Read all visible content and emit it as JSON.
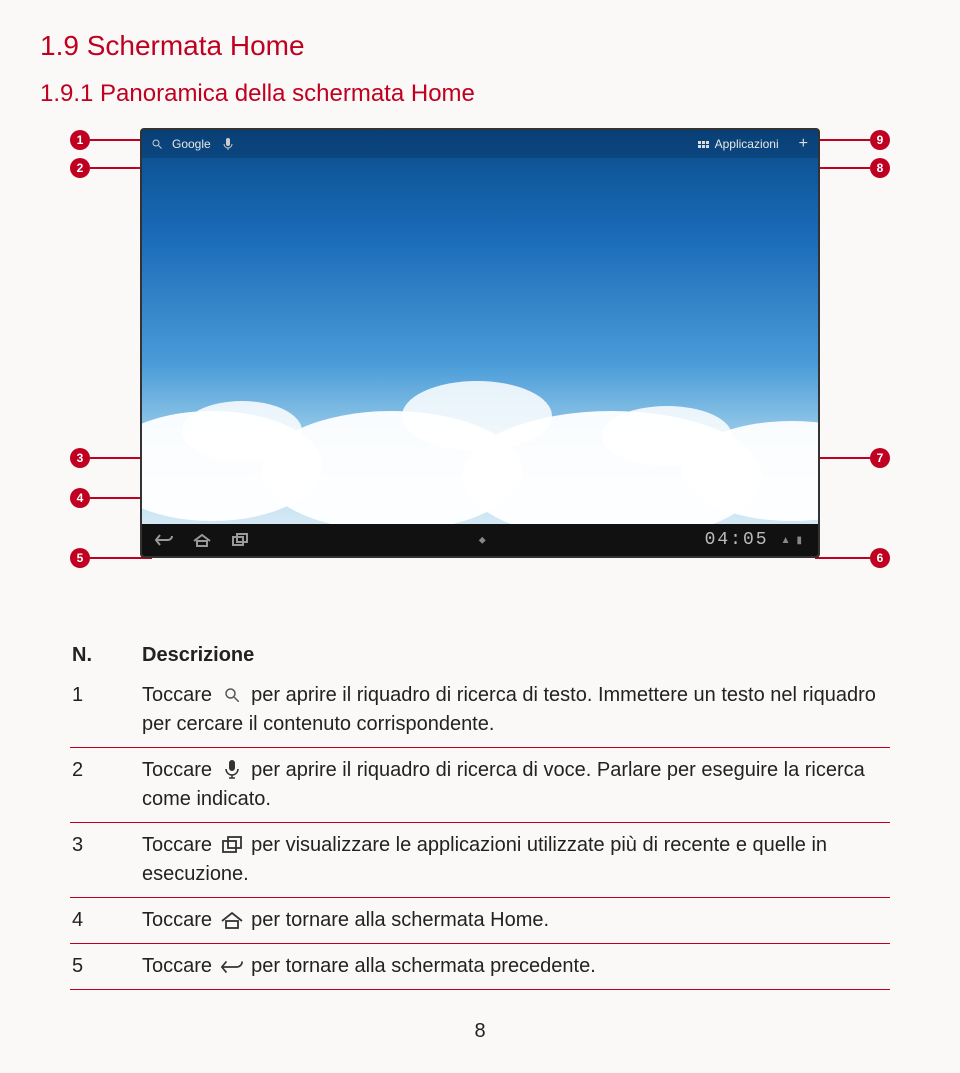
{
  "headings": {
    "h1": "1.9 Schermata Home",
    "h2": "1.9.1 Panoramica della schermata Home"
  },
  "figure": {
    "callouts_left": [
      "1",
      "2",
      "3",
      "4",
      "5"
    ],
    "callouts_right": [
      "9",
      "8",
      "7",
      "6"
    ],
    "topbar": {
      "google_label": "Google",
      "apps_label": "Applicazioni"
    },
    "clock": "04:05",
    "sky_gradient": [
      "#0a4b8a",
      "#1a6bb8",
      "#4a9cd8",
      "#a8d4ec",
      "#e8f2f8"
    ],
    "accent_color": "#c00020"
  },
  "table": {
    "header_n": "N.",
    "header_desc": "Descrizione",
    "rows": [
      {
        "n": "1",
        "pre": "Toccare ",
        "icon": "search",
        "post": " per aprire il riquadro di ricerca di testo. Immettere un testo nel riquadro per cercare il contenuto corrispondente."
      },
      {
        "n": "2",
        "pre": "Toccare ",
        "icon": "mic",
        "post": " per aprire il riquadro di ricerca di voce. Parlare per eseguire la ricerca come indicato."
      },
      {
        "n": "3",
        "pre": "Toccare ",
        "icon": "recent",
        "post": " per visualizzare le applicazioni utilizzate più di recente e quelle in esecuzione."
      },
      {
        "n": "4",
        "pre": "Toccare ",
        "icon": "home",
        "post": " per tornare alla schermata Home."
      },
      {
        "n": "5",
        "pre": "Toccare ",
        "icon": "back",
        "post": " per tornare alla schermata precedente."
      }
    ]
  },
  "page_number": "8"
}
